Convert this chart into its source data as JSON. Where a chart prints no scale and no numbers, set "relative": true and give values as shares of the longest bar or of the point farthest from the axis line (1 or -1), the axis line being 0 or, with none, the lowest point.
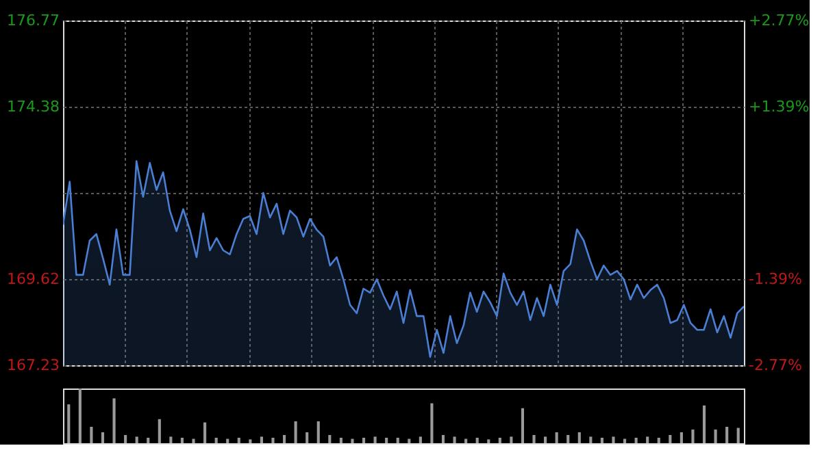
{
  "chart_data": [
    {
      "type": "area",
      "categories": [
        null,
        null,
        null,
        null,
        null,
        null,
        null,
        null,
        null,
        null,
        null,
        null,
        null,
        null,
        null,
        null,
        null,
        null,
        null,
        null,
        null,
        null,
        null,
        null,
        null,
        null,
        null,
        null,
        null,
        null,
        null,
        null,
        null,
        null,
        null,
        null,
        null,
        null,
        null,
        null,
        null,
        null,
        null,
        null,
        null,
        null,
        null,
        null,
        null,
        null,
        null,
        null,
        null,
        null,
        null,
        null,
        null,
        null,
        null,
        null,
        null,
        null,
        null,
        null,
        null,
        null,
        null,
        null,
        null,
        null,
        null,
        null,
        null,
        null,
        null,
        null,
        null,
        null,
        null,
        null,
        null,
        null,
        null,
        null,
        null,
        null,
        null,
        null,
        null,
        null,
        null,
        null,
        null,
        null,
        null,
        null,
        null,
        null,
        null,
        null,
        null,
        null,
        null
      ],
      "ylim": [
        167.23,
        176.77
      ],
      "yticks": [
        176.77,
        174.38,
        {
          "value": 172,
          "label": null
        },
        169.62,
        167.23
      ],
      "y2lim": [
        -2.77,
        2.77
      ],
      "y2ticks": [
        {
          "value": 2.77,
          "label": "+2.77%"
        },
        {
          "value": 1.39,
          "label": "+1.39%"
        },
        {
          "value": 0,
          "label": null
        },
        {
          "value": -1.39,
          "label": "-1.39%"
        },
        {
          "value": -2.77,
          "label": "-2.77%"
        }
      ],
      "grid": true,
      "tick_labels": "y",
      "series": [
        {
          "color": "#4a7fd4",
          "values": [
            171.12,
            172.31,
            169.73,
            169.73,
            170.68,
            170.86,
            170.18,
            169.46,
            170.99,
            169.73,
            169.73,
            172.88,
            171.89,
            172.83,
            172.08,
            172.57,
            171.51,
            170.94,
            171.55,
            170.98,
            170.22,
            171.43,
            170.41,
            170.75,
            170.41,
            170.3,
            170.86,
            171.28,
            171.36,
            170.86,
            172.0,
            171.32,
            171.7,
            170.86,
            171.51,
            171.32,
            170.79,
            171.28,
            170.98,
            170.79,
            169.99,
            170.22,
            169.61,
            168.9,
            168.67,
            169.35,
            169.24,
            169.61,
            169.16,
            168.78,
            169.27,
            168.4,
            169.31,
            168.59,
            168.59,
            167.46,
            168.21,
            167.57,
            168.59,
            167.84,
            168.33,
            169.24,
            168.71,
            169.27,
            168.97,
            168.59,
            169.77,
            169.24,
            168.9,
            169.27,
            168.48,
            169.09,
            168.59,
            169.46,
            168.9,
            169.84,
            170.03,
            170.99,
            170.68,
            170.11,
            169.61,
            169.99,
            169.73,
            169.84,
            169.61,
            169.05,
            169.46,
            169.09,
            169.31,
            169.46,
            169.09,
            168.4,
            168.48,
            168.9,
            168.4,
            168.21,
            168.21,
            168.78,
            168.14,
            168.59,
            167.99,
            168.67,
            168.86
          ]
        }
      ]
    },
    {
      "type": "bar",
      "relative": true,
      "categories": [
        null,
        null,
        null,
        null,
        null,
        null,
        null,
        null,
        null,
        null,
        null,
        null,
        null,
        null,
        null,
        null,
        null,
        null,
        null,
        null,
        null,
        null,
        null,
        null,
        null,
        null,
        null,
        null,
        null,
        null,
        null,
        null,
        null,
        null,
        null,
        null,
        null,
        null,
        null,
        null,
        null,
        null,
        null,
        null,
        null,
        null,
        null,
        null,
        null,
        null,
        null,
        null,
        null,
        null,
        null,
        null,
        null,
        null,
        null,
        null
      ],
      "series": [
        {
          "color": "#9a9a9a",
          "values": [
            0.71,
            1,
            0.3,
            0.2,
            0.82,
            0.15,
            0.12,
            0.1,
            0.44,
            0.12,
            0.1,
            0.08,
            0.38,
            0.1,
            0.08,
            0.1,
            0.07,
            0.12,
            0.1,
            0.15,
            0.4,
            0.2,
            0.4,
            0.15,
            0.1,
            0.08,
            0.1,
            0.12,
            0.1,
            0.1,
            0.08,
            0.12,
            0.73,
            0.15,
            0.12,
            0.08,
            0.1,
            0.07,
            0.1,
            0.12,
            0.64,
            0.15,
            0.12,
            0.2,
            0.15,
            0.2,
            0.12,
            0.1,
            0.12,
            0.08,
            0.1,
            0.12,
            0.1,
            0.15,
            0.2,
            0.25,
            0.69,
            0.25,
            0.3,
            0.28
          ]
        }
      ]
    }
  ]
}
